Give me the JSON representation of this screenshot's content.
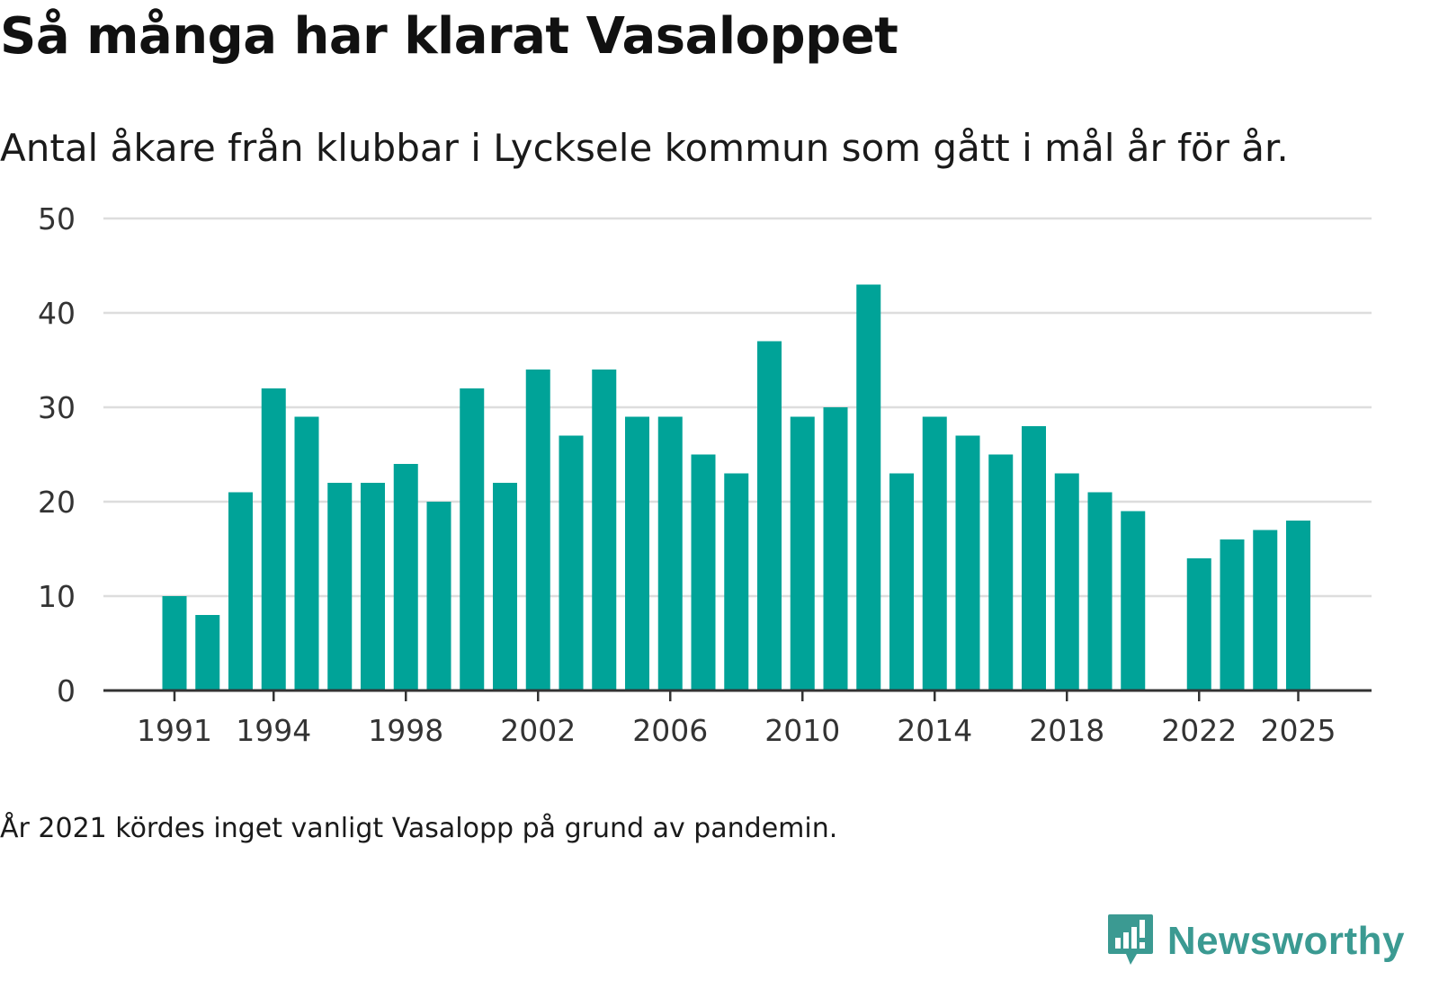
{
  "header": {
    "title": "Så många har klarat Vasaloppet",
    "subtitle": "Antal åkare från klubbar i Lycksele kommun som gått i mål år för år."
  },
  "footnote": "År 2021 kördes inget vanligt Vasalopp på grund av pandemin.",
  "brand": {
    "name": "Newsworthy",
    "icon": "chat-bar-chart-icon",
    "color": "#3b9a92"
  },
  "colors": {
    "bar": "#00a398",
    "grid": "#dddddd",
    "axis": "#333333",
    "tick_text": "#333333"
  },
  "chart_data": {
    "type": "bar",
    "title": "Så många har klarat Vasaloppet",
    "xlabel": "",
    "ylabel": "",
    "ylim": [
      0,
      50
    ],
    "yticks": [
      0,
      10,
      20,
      30,
      40,
      50
    ],
    "xticks": [
      1991,
      1994,
      1998,
      2002,
      2006,
      2010,
      2014,
      2018,
      2022,
      2025
    ],
    "grid": true,
    "categories": [
      1991,
      1992,
      1993,
      1994,
      1995,
      1996,
      1997,
      1998,
      1999,
      2000,
      2001,
      2002,
      2003,
      2004,
      2005,
      2006,
      2007,
      2008,
      2009,
      2010,
      2011,
      2012,
      2013,
      2014,
      2015,
      2016,
      2017,
      2018,
      2019,
      2020,
      2021,
      2022,
      2023,
      2024,
      2025
    ],
    "values": [
      10,
      8,
      21,
      32,
      29,
      22,
      22,
      24,
      20,
      32,
      22,
      34,
      27,
      34,
      29,
      29,
      25,
      23,
      37,
      29,
      30,
      43,
      23,
      29,
      27,
      25,
      28,
      23,
      21,
      19,
      null,
      14,
      16,
      17,
      18
    ]
  }
}
